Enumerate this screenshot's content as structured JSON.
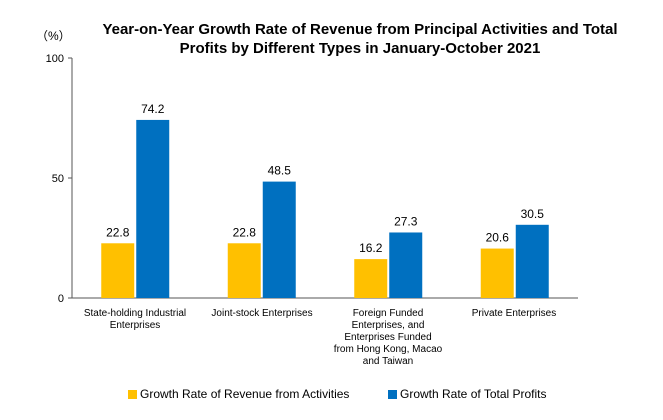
{
  "chart_data": {
    "type": "bar",
    "title": "Year-on-Year Growth Rate of Revenue from Principal Activities  and Total Profits  by Different Types in January-October 2021",
    "unit": "（%）",
    "categories": [
      "State-holding Industrial Enterprises",
      "Joint-stock Enterprises",
      "Foreign Funded Enterprises, and Enterprises Funded from Hong Kong, Macao and Taiwan",
      "Private Enterprises"
    ],
    "series": [
      {
        "name": "Growth Rate of Revenue from Activities",
        "color": "#FFC000",
        "values": [
          22.8,
          22.8,
          16.2,
          20.6
        ]
      },
      {
        "name": "Growth Rate of Total Profits",
        "color": "#0070C0",
        "values": [
          74.2,
          48.5,
          27.3,
          30.5
        ]
      }
    ],
    "ylim": [
      0,
      100
    ],
    "yticks": [
      0,
      50,
      100
    ],
    "grid": false,
    "legend_position": "bottom"
  }
}
